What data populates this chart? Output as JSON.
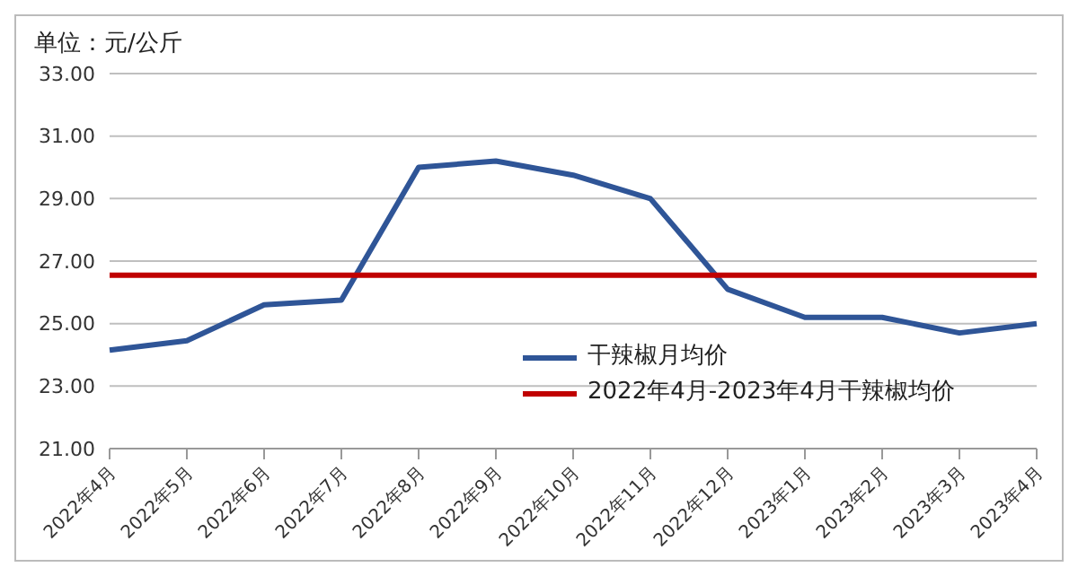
{
  "chart_data": {
    "type": "line",
    "ylabel": "单位：元/公斤",
    "categories": [
      "2022年4月",
      "2022年5月",
      "2022年6月",
      "2022年7月",
      "2022年8月",
      "2022年9月",
      "2022年10月",
      "2022年11月",
      "2022年12月",
      "2023年1月",
      "2023年2月",
      "2023年3月",
      "2023年4月"
    ],
    "series": [
      {
        "name": "干辣椒月均价",
        "color": "#2f5597",
        "values": [
          24.15,
          24.45,
          25.6,
          25.75,
          30.0,
          30.2,
          29.75,
          29.0,
          26.1,
          25.2,
          25.2,
          24.7,
          25.0
        ]
      },
      {
        "name": "2022年4月-2023年4月干辣椒均价",
        "color": "#c00000",
        "values": [
          26.55,
          26.55,
          26.55,
          26.55,
          26.55,
          26.55,
          26.55,
          26.55,
          26.55,
          26.55,
          26.55,
          26.55,
          26.55
        ]
      }
    ],
    "ylim": [
      21,
      33
    ],
    "yticks": [
      {
        "value": 21,
        "label": "21.00"
      },
      {
        "value": 23,
        "label": "23.00"
      },
      {
        "value": 25,
        "label": "25.00"
      },
      {
        "value": 27,
        "label": "27.00"
      },
      {
        "value": 29,
        "label": "29.00"
      },
      {
        "value": 31,
        "label": "31.00"
      },
      {
        "value": 33,
        "label": "33.00"
      }
    ],
    "grid": "y",
    "legend": "bottom right",
    "marker": "none",
    "line_style": "solid"
  }
}
